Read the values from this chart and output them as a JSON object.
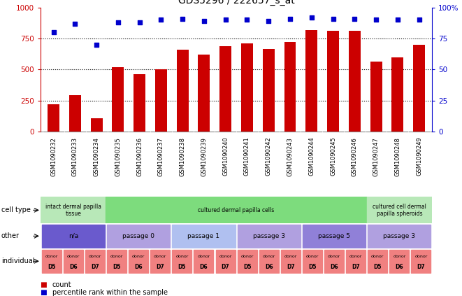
{
  "title": "GDS5296 / 222657_s_at",
  "samples": [
    "GSM1090232",
    "GSM1090233",
    "GSM1090234",
    "GSM1090235",
    "GSM1090236",
    "GSM1090237",
    "GSM1090238",
    "GSM1090239",
    "GSM1090240",
    "GSM1090241",
    "GSM1090242",
    "GSM1090243",
    "GSM1090244",
    "GSM1090245",
    "GSM1090246",
    "GSM1090247",
    "GSM1090248",
    "GSM1090249"
  ],
  "counts": [
    220,
    295,
    110,
    520,
    465,
    505,
    660,
    620,
    690,
    710,
    665,
    720,
    820,
    810,
    810,
    565,
    600,
    700
  ],
  "percentiles": [
    80,
    87,
    70,
    88,
    88,
    90,
    91,
    89,
    90,
    90,
    89,
    91,
    92,
    91,
    91,
    90,
    90,
    90
  ],
  "bar_color": "#cc0000",
  "dot_color": "#0000cc",
  "ylim_left": [
    0,
    1000
  ],
  "ylim_right": [
    0,
    100
  ],
  "yticks_left": [
    0,
    250,
    500,
    750,
    1000
  ],
  "yticks_right": [
    0,
    25,
    50,
    75,
    100
  ],
  "ytick_labels_right": [
    "0",
    "25",
    "50",
    "75",
    "100%"
  ],
  "cell_type_row": {
    "groups": [
      {
        "label": "intact dermal papilla\ntissue",
        "start": 0,
        "end": 3,
        "color": "#b8e8b8"
      },
      {
        "label": "cultured dermal papilla cells",
        "start": 3,
        "end": 15,
        "color": "#7ddc7d"
      },
      {
        "label": "cultured cell dermal\npapilla spheroids",
        "start": 15,
        "end": 18,
        "color": "#b8e8b8"
      }
    ]
  },
  "other_row": {
    "groups": [
      {
        "label": "n/a",
        "start": 0,
        "end": 3,
        "color": "#6a5acd"
      },
      {
        "label": "passage 0",
        "start": 3,
        "end": 6,
        "color": "#b0a0e0"
      },
      {
        "label": "passage 1",
        "start": 6,
        "end": 9,
        "color": "#b0c0f0"
      },
      {
        "label": "passage 3",
        "start": 9,
        "end": 12,
        "color": "#b0a0e0"
      },
      {
        "label": "passage 5",
        "start": 12,
        "end": 15,
        "color": "#9080d8"
      },
      {
        "label": "passage 3",
        "start": 15,
        "end": 18,
        "color": "#b0a0e0"
      }
    ]
  },
  "individual_row": {
    "donors": [
      "D5",
      "D6",
      "D7",
      "D5",
      "D6",
      "D7",
      "D5",
      "D6",
      "D7",
      "D5",
      "D6",
      "D7",
      "D5",
      "D6",
      "D7",
      "D5",
      "D6",
      "D7"
    ],
    "color": "#f08080"
  },
  "row_labels": [
    "cell type",
    "other",
    "individual"
  ],
  "bg_color": "#ffffff",
  "axis_color_left": "#cc0000",
  "axis_color_right": "#0000cc",
  "xlabels_bg": "#c8c8c8",
  "row_bg": "#d8d8d8"
}
